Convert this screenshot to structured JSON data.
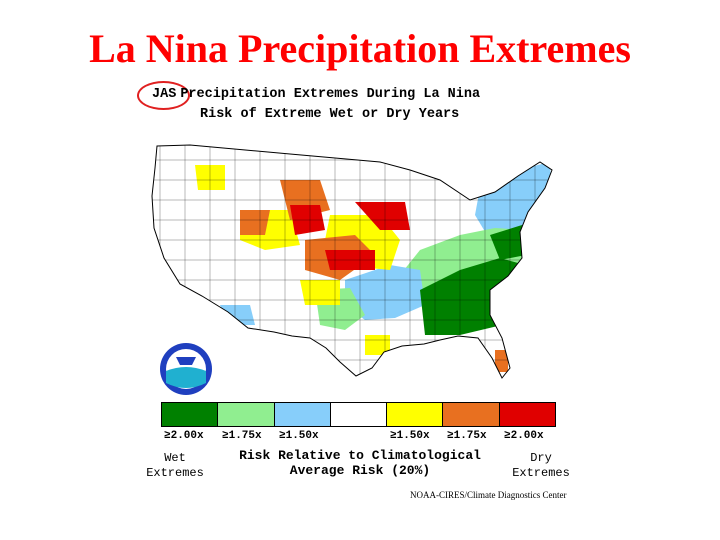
{
  "title": "La Nina Precipitation Extremes",
  "subtitle": {
    "season": "JAS",
    "line1": "Precipitation Extremes During La Nina",
    "line2": "Risk of Extreme Wet or Dry Years"
  },
  "colors": {
    "wet_2_00": "#008000",
    "wet_1_75": "#90ee90",
    "wet_1_50": "#87cefa",
    "neutral": "#ffffff",
    "dry_1_50": "#ffff00",
    "dry_1_75": "#e87020",
    "dry_2_00": "#e00000",
    "title_red": "#ff0000"
  },
  "legend": {
    "ticks": [
      "≥2.00x",
      "≥1.75x",
      "≥1.50x",
      "≥1.50x",
      "≥1.75x",
      "≥2.00x"
    ],
    "wet_label": [
      "Wet",
      "Extremes"
    ],
    "dry_label": [
      "Dry",
      "Extremes"
    ],
    "risk_line1": "Risk Relative to Climatological",
    "risk_line2": "Average Risk (20%)"
  },
  "credit": "NOAA-CIRES/Climate Diagnostics Center",
  "map_regions": [
    {
      "region": "Southeast",
      "category": "wet_2_00"
    },
    {
      "region": "Mid-Atlantic / Appalachia",
      "category": "wet_1_75"
    },
    {
      "region": "Northeast / New England",
      "category": "wet_1_50"
    },
    {
      "region": "Southern Plains / Lower Mississippi",
      "category": "wet_1_50"
    },
    {
      "region": "Central Plains / Upper Midwest",
      "category": "dry_2_00"
    },
    {
      "region": "Northern Rockies / Plains",
      "category": "dry_1_75"
    },
    {
      "region": "Great Basin / Southwest / Gulf Coast",
      "category": "dry_1_50"
    }
  ]
}
